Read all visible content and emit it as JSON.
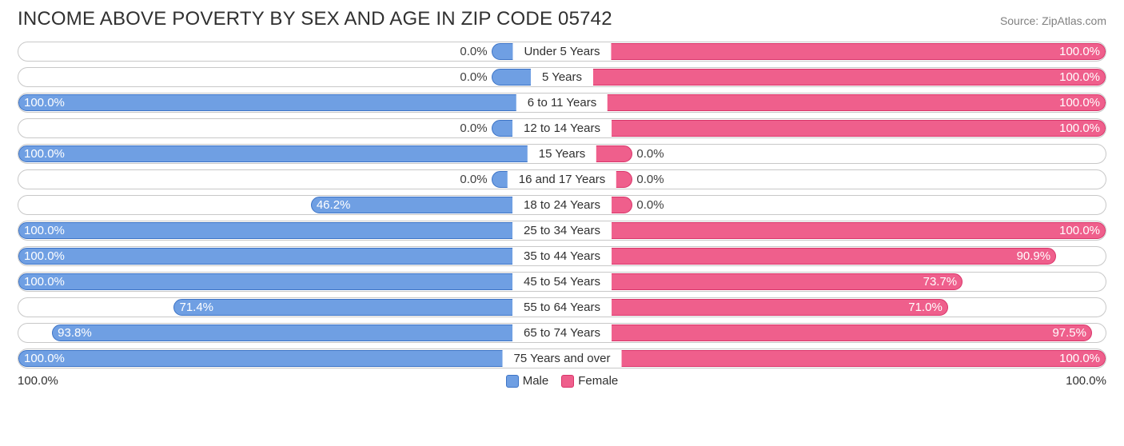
{
  "title": "INCOME ABOVE POVERTY BY SEX AND AGE IN ZIP CODE 05742",
  "source": "Source: ZipAtlas.com",
  "axis_left": "100.0%",
  "axis_right": "100.0%",
  "legend": {
    "male": "Male",
    "female": "Female"
  },
  "colors": {
    "male_fill": "#6f9fe3",
    "male_border": "#3d74c6",
    "female_fill": "#ef5f8c",
    "female_border": "#d9356a",
    "track_border": "#c8c8c8",
    "background": "#ffffff",
    "text": "#303030",
    "muted_text": "#808080"
  },
  "chart": {
    "type": "diverging-bar",
    "male_stub_pct": 13,
    "female_stub_pct": 13,
    "label_inside_threshold": 25,
    "rows": [
      {
        "category": "Under 5 Years",
        "male": 0.0,
        "female": 100.0
      },
      {
        "category": "5 Years",
        "male": 0.0,
        "female": 100.0
      },
      {
        "category": "6 to 11 Years",
        "male": 100.0,
        "female": 100.0
      },
      {
        "category": "12 to 14 Years",
        "male": 0.0,
        "female": 100.0
      },
      {
        "category": "15 Years",
        "male": 100.0,
        "female": 0.0
      },
      {
        "category": "16 and 17 Years",
        "male": 0.0,
        "female": 0.0
      },
      {
        "category": "18 to 24 Years",
        "male": 46.2,
        "female": 0.0
      },
      {
        "category": "25 to 34 Years",
        "male": 100.0,
        "female": 100.0
      },
      {
        "category": "35 to 44 Years",
        "male": 100.0,
        "female": 90.9
      },
      {
        "category": "45 to 54 Years",
        "male": 100.0,
        "female": 73.7
      },
      {
        "category": "55 to 64 Years",
        "male": 71.4,
        "female": 71.0
      },
      {
        "category": "65 to 74 Years",
        "male": 93.8,
        "female": 97.5
      },
      {
        "category": "75 Years and over",
        "male": 100.0,
        "female": 100.0
      }
    ]
  }
}
